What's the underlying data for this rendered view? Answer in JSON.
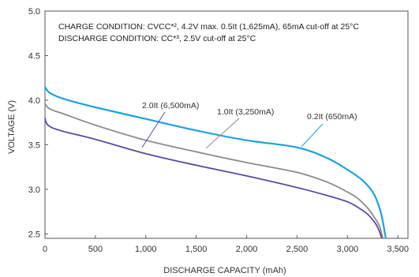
{
  "chart_data": {
    "type": "line",
    "xlabel": "DISCHARGE CAPACITY (mAh)",
    "ylabel": "VOLTAGE (V)",
    "xlim": [
      0,
      3600
    ],
    "ylim": [
      2.45,
      5.0
    ],
    "xticks": [
      0,
      500,
      1000,
      1500,
      2000,
      2500,
      3000,
      3500
    ],
    "xtick_labels": [
      "0",
      "500",
      "1,000",
      "1,500",
      "2,000",
      "2,500",
      "3,000",
      "3,500"
    ],
    "yticks": [
      2.5,
      3.0,
      3.5,
      4.0,
      4.5,
      5.0
    ],
    "ytick_labels": [
      "2.5",
      "3.0",
      "3.5",
      "4.0",
      "4.5",
      "5.0"
    ],
    "grid": false,
    "annotations": [
      "CHARGE CONDITION: CVCC*², 4.2V max. 0.5It (1,625mA), 65mA cut-off at 25°C",
      "DISCHARGE CONDITION: CC*³, 2.5V cut-off at 25°C"
    ],
    "series": [
      {
        "name": "0.2It (650mA)",
        "color": "#1aa3dc",
        "x": [
          0,
          50,
          200,
          500,
          1000,
          1500,
          2000,
          2500,
          2800,
          3000,
          3150,
          3250,
          3300,
          3340,
          3380
        ],
        "y": [
          4.15,
          4.08,
          4.01,
          3.92,
          3.79,
          3.66,
          3.55,
          3.47,
          3.35,
          3.22,
          3.1,
          2.97,
          2.85,
          2.7,
          2.45
        ]
      },
      {
        "name": "1.0It (3,250mA)",
        "color": "#8c8c8c",
        "x": [
          0,
          50,
          200,
          500,
          1000,
          1500,
          2000,
          2500,
          2800,
          3000,
          3100,
          3200,
          3270,
          3320,
          3350
        ],
        "y": [
          3.96,
          3.9,
          3.84,
          3.72,
          3.55,
          3.42,
          3.3,
          3.19,
          3.08,
          2.97,
          2.9,
          2.79,
          2.68,
          2.58,
          2.45
        ]
      },
      {
        "name": "2.0It (6,500mA)",
        "color": "#5b4aa3",
        "x": [
          0,
          30,
          150,
          500,
          1000,
          1500,
          2000,
          2500,
          2800,
          3000,
          3100,
          3200,
          3270,
          3310,
          3340
        ],
        "y": [
          3.8,
          3.72,
          3.66,
          3.56,
          3.4,
          3.27,
          3.15,
          3.02,
          2.93,
          2.86,
          2.8,
          2.72,
          2.63,
          2.55,
          2.45
        ]
      }
    ],
    "series_labels": [
      {
        "text": "2.0It (6,500mA)",
        "color": "#5b4aa3"
      },
      {
        "text": "1.0It (3,250mA)",
        "color": "#8c8c8c"
      },
      {
        "text": "0.2It (650mA)",
        "color": "#1aa3dc"
      }
    ]
  }
}
